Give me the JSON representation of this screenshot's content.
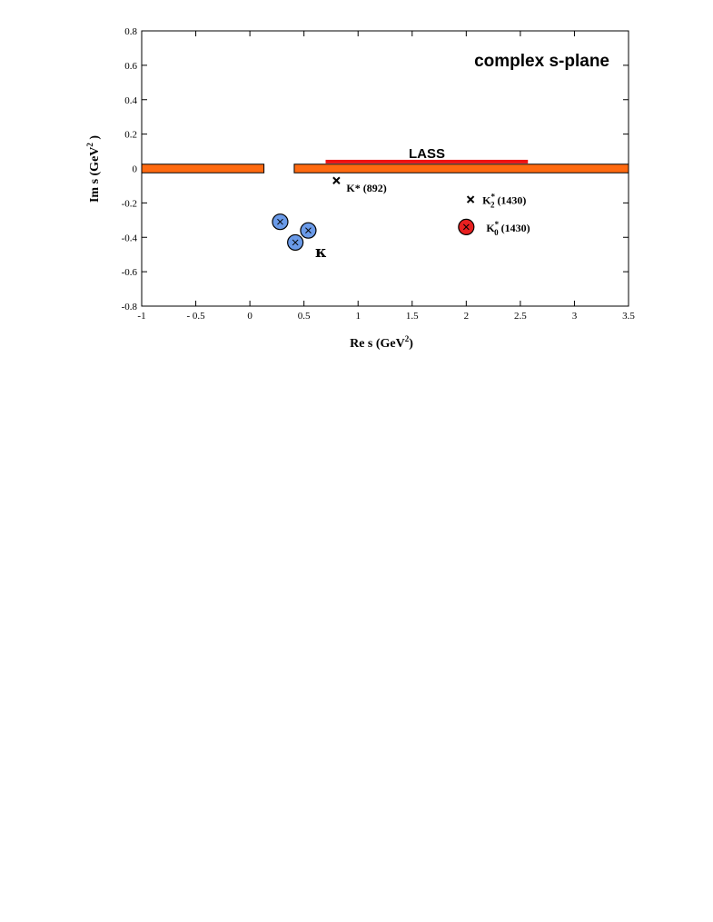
{
  "chart_data": {
    "type": "scatter",
    "title": "complex s-plane",
    "xlabel": "Re s  (GeV",
    "xlabel_sup": "2",
    "xlabel_tail": ")",
    "ylabel": "Im s  (GeV",
    "ylabel_sup": "2",
    "ylabel_tail": " )",
    "xlim": [
      -1,
      3.5
    ],
    "ylim": [
      -0.8,
      0.8
    ],
    "x_ticks": [
      "-1",
      "- 0.5",
      "0",
      "0.5",
      "1",
      "1.5",
      "2",
      "2.5",
      "3",
      "3.5"
    ],
    "y_ticks": [
      "0.8",
      "0.6",
      "0.4",
      "0.2",
      "0",
      "-0.2",
      "-0.4",
      "-0.6",
      "-0.8"
    ],
    "x_tick_values": [
      -1,
      -0.5,
      0,
      0.5,
      1,
      1.5,
      2,
      2.5,
      3,
      3.5
    ],
    "y_tick_values": [
      0.8,
      0.6,
      0.4,
      0.2,
      0,
      -0.2,
      -0.4,
      -0.6,
      -0.8
    ],
    "grid": false,
    "cuts": [
      {
        "x_start": -1,
        "x_end": 0.13,
        "color": "#ff6a10"
      },
      {
        "x_start": 0.41,
        "x_end": 3.5,
        "color": "#ff6a10"
      }
    ],
    "lass_band": {
      "label": "LASS",
      "x_start": 0.7,
      "x_end": 2.57,
      "y": 0.04,
      "color": "#ee1111"
    },
    "kappa_poles": [
      {
        "x": 0.28,
        "y": -0.31
      },
      {
        "x": 0.54,
        "y": -0.36
      },
      {
        "x": 0.42,
        "y": -0.43
      }
    ],
    "kappa_label": "κ",
    "kappa_color": "#6a9ae8",
    "poles": [
      {
        "x": 0.8,
        "y": -0.07,
        "label_main": "K* (892)",
        "label_sub": ""
      },
      {
        "x": 2.04,
        "y": -0.18,
        "label_main": "K",
        "label_sup": "*",
        "label_sub": "2",
        "label_tail": " (1430)"
      }
    ],
    "k0_pole": {
      "x": 2.0,
      "y": -0.34,
      "label_main": "K",
      "label_sup": "*",
      "label_sub": "0",
      "label_tail": " (1430)",
      "color": "#e82020"
    }
  }
}
